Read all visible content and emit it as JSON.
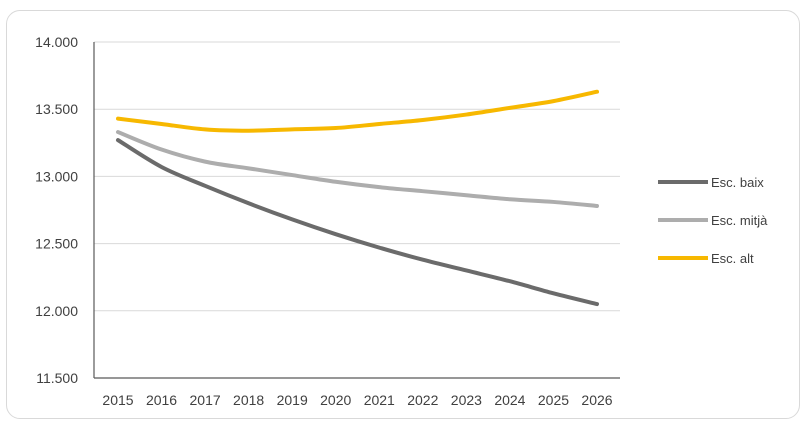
{
  "chart_data": {
    "type": "line",
    "title": "",
    "xlabel": "",
    "ylabel": "",
    "x": [
      "2015",
      "2016",
      "2017",
      "2018",
      "2019",
      "2020",
      "2021",
      "2022",
      "2023",
      "2024",
      "2025",
      "2026"
    ],
    "ylim": [
      11500,
      14000
    ],
    "y_ticks": [
      {
        "value": 11500,
        "label": "11.500"
      },
      {
        "value": 12000,
        "label": "12.000"
      },
      {
        "value": 12500,
        "label": "12.500"
      },
      {
        "value": 13000,
        "label": "13.000"
      },
      {
        "value": 13500,
        "label": "13.500"
      },
      {
        "value": 14000,
        "label": "14.000"
      }
    ],
    "grid": true,
    "legend_position": "right",
    "series": [
      {
        "name": "Esc. baix",
        "color": "#6b6b6b",
        "values": [
          13270,
          13070,
          12930,
          12800,
          12680,
          12570,
          12470,
          12380,
          12300,
          12220,
          12130,
          12050
        ]
      },
      {
        "name": "Esc. mitjà",
        "color": "#adadad",
        "values": [
          13330,
          13200,
          13110,
          13060,
          13010,
          12960,
          12920,
          12890,
          12860,
          12830,
          12810,
          12780
        ]
      },
      {
        "name": "Esc. alt",
        "color": "#f7b800",
        "values": [
          13430,
          13390,
          13350,
          13340,
          13350,
          13360,
          13390,
          13420,
          13460,
          13510,
          13560,
          13630
        ]
      }
    ]
  }
}
